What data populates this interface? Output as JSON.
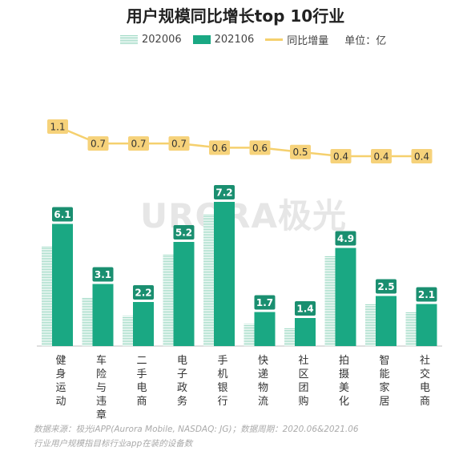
{
  "title": "用户规模同比增长top 10行业",
  "legend": {
    "series_old": "202006",
    "series_new": "202106",
    "line": "同比增量",
    "unit": "单位：亿"
  },
  "watermark": "URORA极光",
  "footer": {
    "line1": "数据来源：极光iAPP(Aurora Mobile, NASDAQ: JG)；数据周期：2020.06&2021.06",
    "line2": "行业用户规模指目标行业app在装的设备数"
  },
  "colors": {
    "old": "#9ed9c4",
    "new": "#1aa883",
    "line": "#f5d06e",
    "label_bg": "#1a8f70",
    "line_label_bg": "#f6d27a"
  },
  "chart_data": {
    "type": "bar",
    "categories": [
      "健身运动",
      "车险与违章",
      "二手电商",
      "电子政务",
      "手机银行",
      "快递物流",
      "社区团购",
      "拍摄美化",
      "智能家居",
      "社交电商"
    ],
    "series": [
      {
        "name": "202006",
        "values": [
          5.0,
          2.4,
          1.5,
          4.6,
          6.6,
          1.1,
          0.9,
          4.5,
          2.1,
          1.7
        ]
      },
      {
        "name": "202106",
        "values": [
          6.1,
          3.1,
          2.2,
          5.2,
          7.2,
          1.7,
          1.4,
          4.9,
          2.5,
          2.1
        ]
      },
      {
        "name": "同比增量",
        "type": "line",
        "values": [
          1.1,
          0.7,
          0.7,
          0.7,
          0.6,
          0.6,
          0.5,
          0.4,
          0.4,
          0.4
        ]
      }
    ],
    "labels_new": [
      "6.1",
      "3.1",
      "2.2",
      "5.2",
      "7.2",
      "1.7",
      "1.4",
      "4.9",
      "2.5",
      "2.1"
    ],
    "labels_line": [
      "1.1",
      "0.7",
      "0.7",
      "0.7",
      "0.6",
      "0.6",
      "0.5",
      "0.4",
      "0.4",
      "0.4"
    ]
  }
}
